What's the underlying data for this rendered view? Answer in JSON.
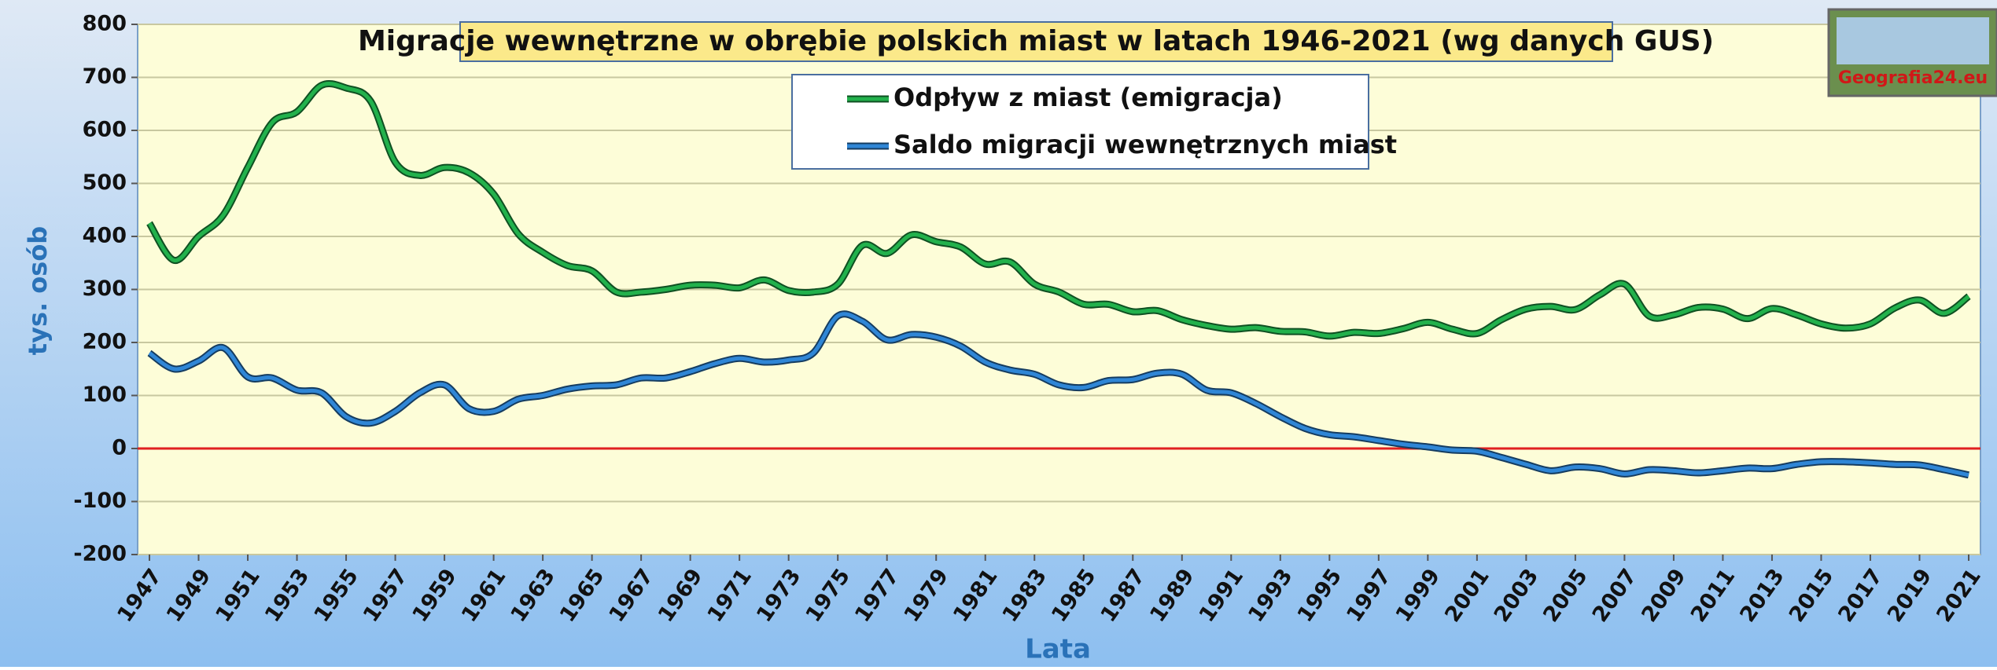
{
  "chart_data": {
    "type": "line",
    "title": "Migracje wewnętrzne w obrębie polskich miast w latach 1946-2021 (wg danych GUS)",
    "x_label": "Lata",
    "y_label": "tys. osób",
    "logo_text": "Geografia24.eu",
    "x": [
      1947,
      1948,
      1949,
      1950,
      1951,
      1952,
      1953,
      1954,
      1955,
      1956,
      1957,
      1958,
      1959,
      1960,
      1961,
      1962,
      1963,
      1964,
      1965,
      1966,
      1967,
      1968,
      1969,
      1970,
      1971,
      1972,
      1973,
      1974,
      1975,
      1976,
      1977,
      1978,
      1979,
      1980,
      1981,
      1982,
      1983,
      1984,
      1985,
      1986,
      1987,
      1988,
      1989,
      1990,
      1991,
      1992,
      1993,
      1994,
      1995,
      1996,
      1997,
      1998,
      1999,
      2000,
      2001,
      2002,
      2003,
      2004,
      2005,
      2006,
      2007,
      2008,
      2009,
      2010,
      2011,
      2012,
      2013,
      2014,
      2015,
      2016,
      2017,
      2018,
      2019,
      2020,
      2021
    ],
    "series": [
      {
        "name": "Odpływ z miast (emigracja)",
        "color": "#22b14c",
        "values": [
          425,
          355,
          400,
          440,
          530,
          615,
          635,
          685,
          680,
          655,
          540,
          515,
          530,
          520,
          480,
          405,
          370,
          345,
          335,
          295,
          295,
          300,
          308,
          308,
          303,
          318,
          298,
          295,
          310,
          383,
          368,
          403,
          390,
          380,
          348,
          352,
          310,
          295,
          272,
          272,
          258,
          260,
          243,
          232,
          225,
          228,
          221,
          220,
          212,
          219,
          217,
          226,
          238,
          225,
          217,
          243,
          263,
          268,
          262,
          290,
          310,
          250,
          252,
          266,
          263,
          245,
          264,
          252,
          235,
          227,
          235,
          265,
          280,
          255,
          287
        ]
      },
      {
        "name": "Saldo migracji wewnętrznych miast",
        "color": "#2f86d6",
        "values": [
          180,
          150,
          165,
          190,
          135,
          133,
          110,
          105,
          60,
          48,
          70,
          105,
          120,
          75,
          70,
          93,
          100,
          112,
          118,
          120,
          133,
          133,
          145,
          160,
          170,
          163,
          167,
          180,
          250,
          240,
          205,
          215,
          210,
          193,
          163,
          148,
          140,
          120,
          115,
          128,
          130,
          142,
          140,
          110,
          105,
          85,
          60,
          38,
          26,
          22,
          15,
          8,
          3,
          -3,
          -5,
          -17,
          -30,
          -42,
          -35,
          -38,
          -48,
          -40,
          -42,
          -46,
          -42,
          -37,
          -38,
          -30,
          -25,
          -25,
          -27,
          -30,
          -31,
          -40,
          -50
        ]
      }
    ],
    "xlim": [
      1947,
      2021
    ],
    "xticks": [
      1947,
      1949,
      1951,
      1953,
      1955,
      1957,
      1959,
      1961,
      1963,
      1965,
      1967,
      1969,
      1971,
      1973,
      1975,
      1977,
      1979,
      1981,
      1983,
      1985,
      1987,
      1989,
      1991,
      1993,
      1995,
      1997,
      1999,
      2001,
      2003,
      2005,
      2007,
      2009,
      2011,
      2013,
      2015,
      2017,
      2019,
      2021
    ],
    "ylim": [
      -200,
      800
    ],
    "yticks": [
      -200,
      -100,
      0,
      100,
      200,
      300,
      400,
      500,
      600,
      700,
      800
    ],
    "grid": true,
    "zero_line_color": "#e02020",
    "legend": "top"
  }
}
